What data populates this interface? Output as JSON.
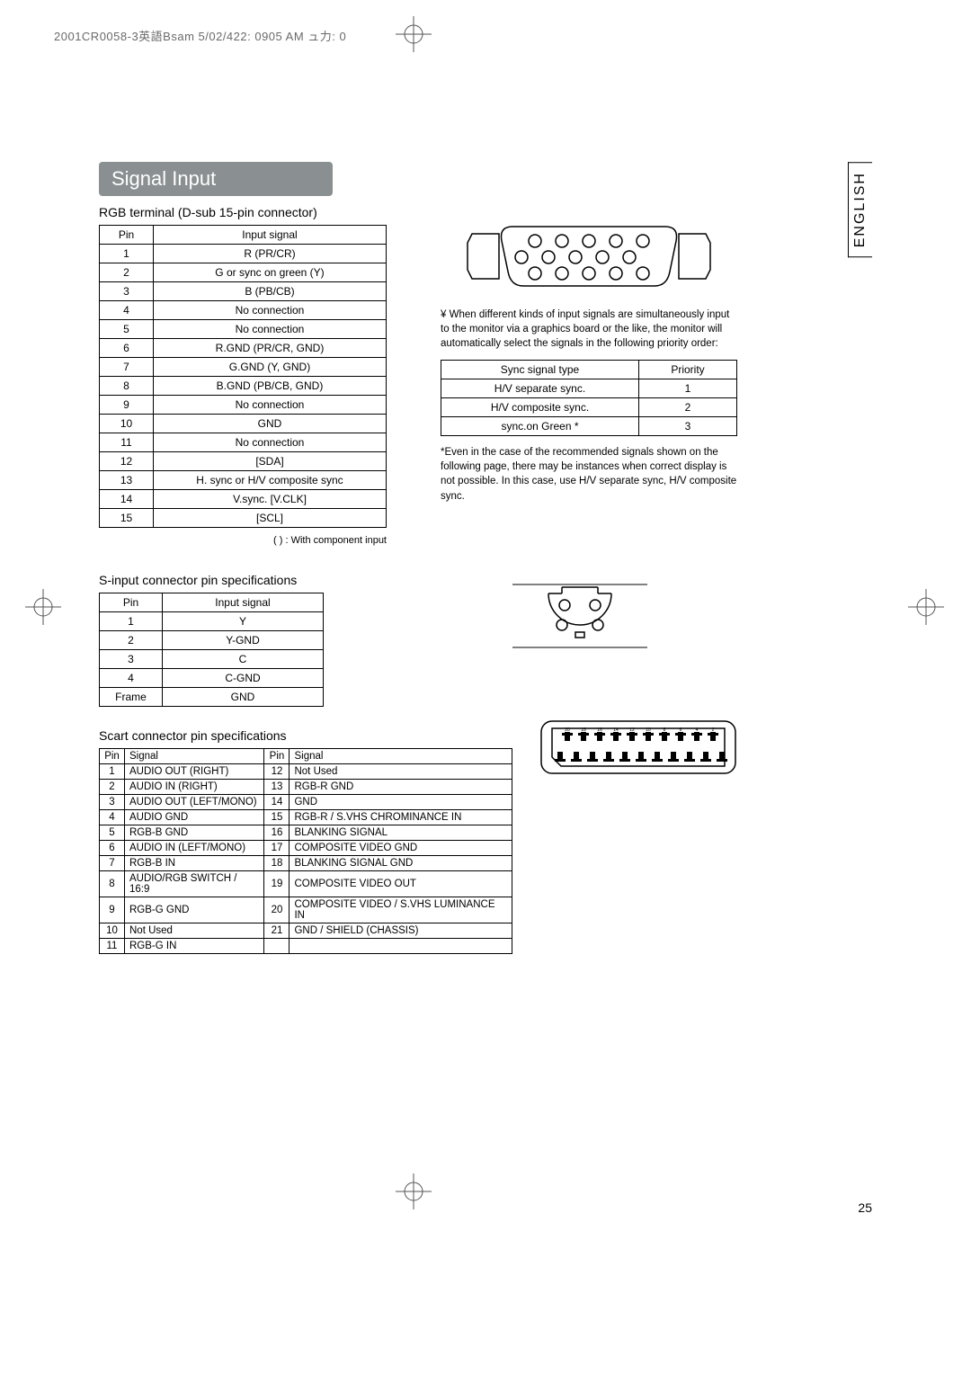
{
  "header": "2001CR0058-3英語Bsam  5/02/422:  0905 AM   ュ力: 0",
  "title": "Signal Input",
  "lang_tab": "ENGLISH",
  "page_number": "25",
  "rgb": {
    "subtitle": "RGB terminal (D-sub 15-pin connector)",
    "col_pin": "Pin",
    "col_signal": "Input signal",
    "rows": [
      {
        "pin": "1",
        "sig": "R (PR/CR)"
      },
      {
        "pin": "2",
        "sig": "G or sync on green (Y)"
      },
      {
        "pin": "3",
        "sig": "B (PB/CB)"
      },
      {
        "pin": "4",
        "sig": "No connection"
      },
      {
        "pin": "5",
        "sig": "No connection"
      },
      {
        "pin": "6",
        "sig": "R.GND (PR/CR, GND)"
      },
      {
        "pin": "7",
        "sig": "G.GND (Y, GND)"
      },
      {
        "pin": "8",
        "sig": "B.GND (PB/CB, GND)"
      },
      {
        "pin": "9",
        "sig": "No connection"
      },
      {
        "pin": "10",
        "sig": "GND"
      },
      {
        "pin": "11",
        "sig": "No connection"
      },
      {
        "pin": "12",
        "sig": "[SDA]"
      },
      {
        "pin": "13",
        "sig": "H. sync or H/V composite sync"
      },
      {
        "pin": "14",
        "sig": "V.sync. [V.CLK]"
      },
      {
        "pin": "15",
        "sig": "[SCL]"
      }
    ],
    "note": "(    ) : With component input"
  },
  "right": {
    "note": "¥ When different kinds of input signals are simultaneously input to the monitor via a graphics board or the like, the monitor will automatically select the signals in the following priority order:",
    "sync_col1": "Sync signal type",
    "sync_col2": "Priority",
    "sync_rows": [
      {
        "t": "H/V separate sync.",
        "p": "1"
      },
      {
        "t": "H/V composite sync.",
        "p": "2"
      },
      {
        "t": "sync.on Green *",
        "p": "3"
      }
    ],
    "footnote": "*Even in the case of the recommended signals shown on the following page, there may be instances when correct display is not possible. In this case, use H/V separate sync, H/V composite sync."
  },
  "sinput": {
    "subtitle": "S-input connector pin specifications",
    "col_pin": "Pin",
    "col_signal": "Input signal",
    "rows": [
      {
        "pin": "1",
        "sig": "Y"
      },
      {
        "pin": "2",
        "sig": "Y-GND"
      },
      {
        "pin": "3",
        "sig": "C"
      },
      {
        "pin": "4",
        "sig": "C-GND"
      },
      {
        "pin": "Frame",
        "sig": "GND"
      }
    ]
  },
  "scart": {
    "subtitle": "Scart connector pin specifications",
    "col_pin": "Pin",
    "col_signal": "Signal",
    "left": [
      {
        "pin": "1",
        "sig": "AUDIO OUT (RIGHT)"
      },
      {
        "pin": "2",
        "sig": "AUDIO IN (RIGHT)"
      },
      {
        "pin": "3",
        "sig": "AUDIO OUT (LEFT/MONO)"
      },
      {
        "pin": "4",
        "sig": "AUDIO GND"
      },
      {
        "pin": "5",
        "sig": "RGB-B GND"
      },
      {
        "pin": "6",
        "sig": "AUDIO IN (LEFT/MONO)"
      },
      {
        "pin": "7",
        "sig": "RGB-B IN"
      },
      {
        "pin": "8",
        "sig": "AUDIO/RGB SWITCH / 16:9"
      },
      {
        "pin": "9",
        "sig": "RGB-G GND"
      },
      {
        "pin": "10",
        "sig": "Not Used"
      },
      {
        "pin": "11",
        "sig": "RGB-G IN"
      }
    ],
    "right": [
      {
        "pin": "12",
        "sig": "Not Used"
      },
      {
        "pin": "13",
        "sig": "RGB-R GND"
      },
      {
        "pin": "14",
        "sig": "GND"
      },
      {
        "pin": "15",
        "sig": "RGB-R / S.VHS CHROMINANCE IN"
      },
      {
        "pin": "16",
        "sig": "BLANKING SIGNAL"
      },
      {
        "pin": "17",
        "sig": "COMPOSITE VIDEO GND"
      },
      {
        "pin": "18",
        "sig": "BLANKING SIGNAL GND"
      },
      {
        "pin": "19",
        "sig": "COMPOSITE VIDEO OUT"
      },
      {
        "pin": "20",
        "sig": "COMPOSITE VIDEO / S.VHS LUMINANCE IN"
      },
      {
        "pin": "21",
        "sig": "GND / SHIELD (CHASSIS)"
      },
      {
        "pin": "",
        "sig": ""
      }
    ]
  },
  "colors": {
    "title_bg": "#8a8f91",
    "border": "#000000",
    "text": "#000000"
  }
}
